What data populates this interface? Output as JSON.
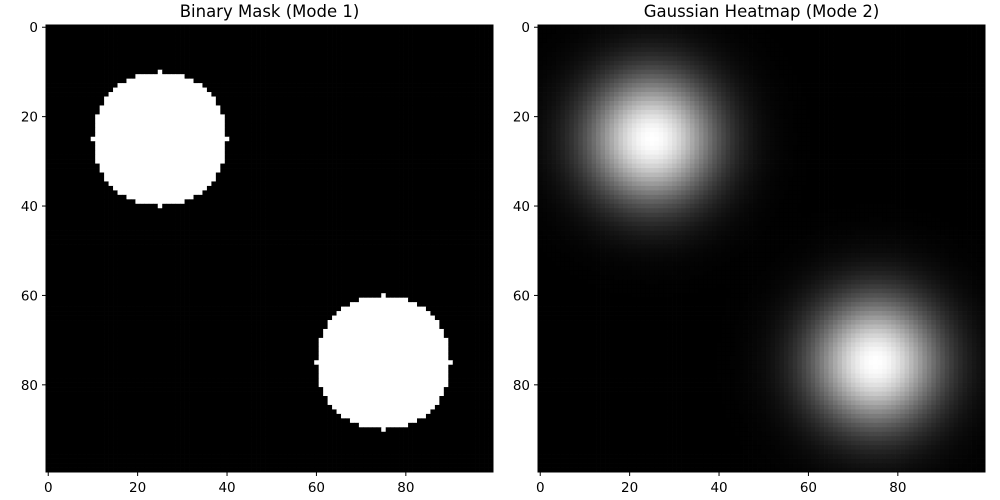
{
  "chart_data": [
    {
      "type": "heatmap",
      "title": "Binary Mask (Mode 1)",
      "colormap": "gray",
      "grid": false,
      "xlim": [
        0,
        99
      ],
      "ylim": [
        99,
        0
      ],
      "xticks": [
        0,
        20,
        40,
        60,
        80
      ],
      "yticks": [
        0,
        20,
        40,
        60,
        80
      ],
      "grid_size": [
        100,
        100
      ],
      "blobs": [
        {
          "center": [
            25,
            25
          ],
          "radius": 15,
          "value": 1
        },
        {
          "center": [
            75,
            75
          ],
          "radius": 15,
          "value": 1
        }
      ],
      "background_value": 0
    },
    {
      "type": "heatmap",
      "title": "Gaussian Heatmap (Mode 2)",
      "colormap": "gray",
      "grid": false,
      "xlim": [
        0,
        99
      ],
      "ylim": [
        99,
        0
      ],
      "xticks": [
        0,
        20,
        40,
        60,
        80
      ],
      "yticks": [
        0,
        20,
        40,
        60,
        80
      ],
      "grid_size": [
        100,
        100
      ],
      "gaussians": [
        {
          "center": [
            25,
            25
          ],
          "sigma": 10,
          "peak": 1
        },
        {
          "center": [
            75,
            75
          ],
          "sigma": 10,
          "peak": 1
        }
      ]
    }
  ]
}
